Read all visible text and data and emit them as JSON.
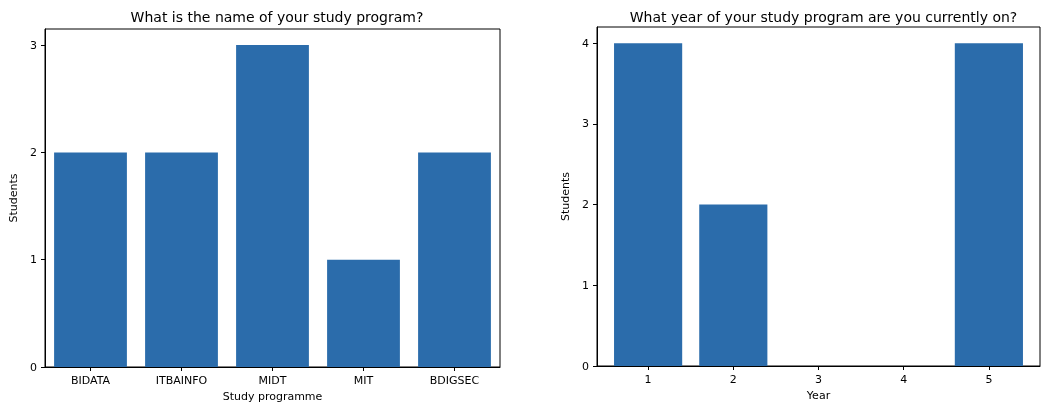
{
  "chart_data": [
    {
      "type": "bar",
      "title": "What is the name of your study program?",
      "xlabel": "Study programme",
      "ylabel": "Students",
      "categories": [
        "BIDATA",
        "ITBAINFO",
        "MIDT",
        "MIT",
        "BDIGSEC"
      ],
      "values": [
        2,
        2,
        3,
        1,
        2
      ],
      "color": "#2b6cab",
      "ylim": [
        0,
        3.15
      ],
      "yticks": [
        0,
        1,
        2,
        3
      ],
      "grid": false
    },
    {
      "type": "bar",
      "title": "What year of your study program are you currently on?",
      "xlabel": "Year",
      "ylabel": "Students",
      "x": [
        1,
        2,
        3,
        4,
        5
      ],
      "values": [
        4,
        2,
        0,
        0,
        4
      ],
      "color": "#2b6cab",
      "xlim": [
        0.4,
        5.6
      ],
      "xticks": [
        1,
        2,
        3,
        4,
        5
      ],
      "ylim": [
        0,
        4.2
      ],
      "yticks": [
        0,
        1,
        2,
        3,
        4
      ],
      "grid": false
    }
  ]
}
